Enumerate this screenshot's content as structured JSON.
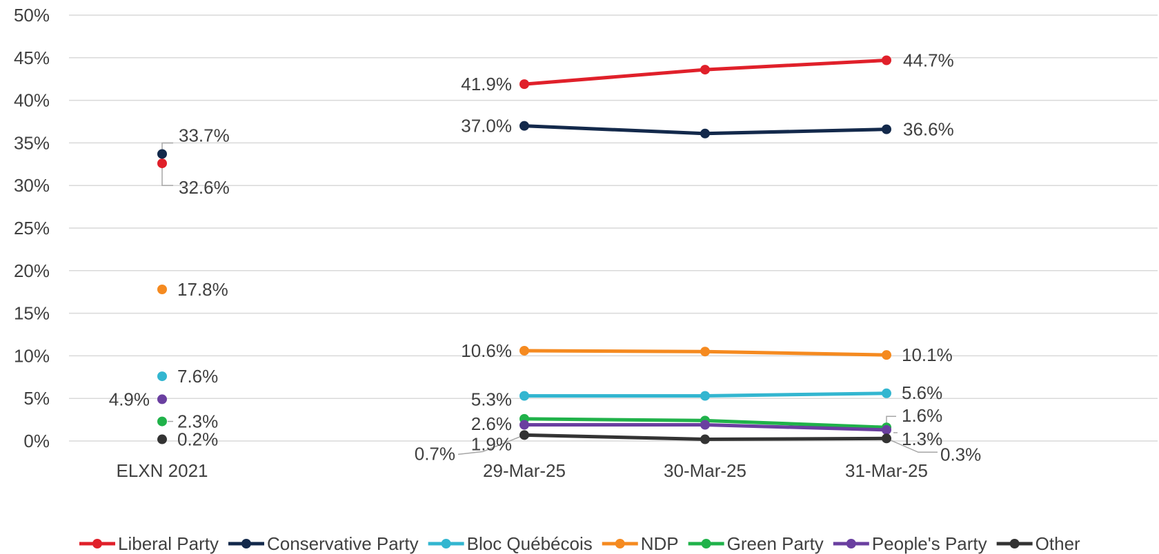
{
  "chart_data": {
    "type": "line",
    "title": "",
    "xlabel": "",
    "ylabel": "",
    "ylim": [
      0,
      50
    ],
    "y_ticks": [
      "0%",
      "5%",
      "10%",
      "15%",
      "20%",
      "25%",
      "30%",
      "35%",
      "40%",
      "45%",
      "50%"
    ],
    "grid": true,
    "legend_position": "bottom",
    "categories": [
      "ELXN 2021",
      "29-Mar-25",
      "30-Mar-25",
      "31-Mar-25"
    ],
    "series": [
      {
        "name": "Liberal Party",
        "color": "#E0202A",
        "values": [
          32.6,
          41.9,
          43.6,
          44.7
        ],
        "labels": [
          "32.6%",
          "41.9%",
          "",
          "44.7%"
        ]
      },
      {
        "name": "Conservative Party",
        "color": "#13294B",
        "values": [
          33.7,
          37.0,
          36.1,
          36.6
        ],
        "labels": [
          "33.7%",
          "37.0%",
          "",
          "36.6%"
        ]
      },
      {
        "name": "Bloc Québécois",
        "color": "#33B6D0",
        "values": [
          7.6,
          5.3,
          5.3,
          5.6
        ],
        "labels": [
          "7.6%",
          "5.3%",
          "",
          "5.6%"
        ]
      },
      {
        "name": "NDP",
        "color": "#F58A20",
        "values": [
          17.8,
          10.6,
          10.5,
          10.1
        ],
        "labels": [
          "17.8%",
          "10.6%",
          "",
          "10.1%"
        ]
      },
      {
        "name": "Green Party",
        "color": "#20B24A",
        "values": [
          2.3,
          2.6,
          2.4,
          1.6
        ],
        "labels": [
          "2.3%",
          "2.6%",
          "",
          "1.6%"
        ]
      },
      {
        "name": "People's Party",
        "color": "#6A3FA0",
        "values": [
          4.9,
          1.9,
          1.9,
          1.3
        ],
        "labels": [
          "4.9%",
          "1.9%",
          "",
          "1.3%"
        ]
      },
      {
        "name": "Other",
        "color": "#333333",
        "values": [
          0.2,
          0.7,
          0.2,
          0.3
        ],
        "labels": [
          "0.2%",
          "0.7%",
          "",
          "0.3%"
        ]
      }
    ]
  }
}
